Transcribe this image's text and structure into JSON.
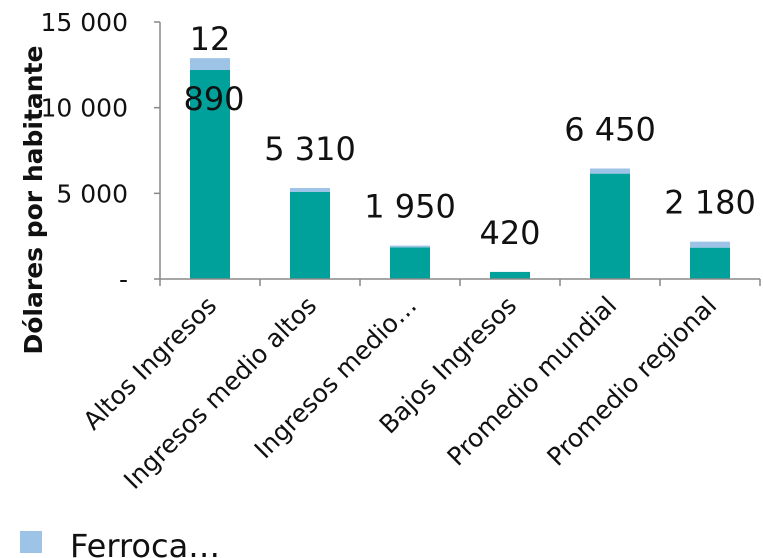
{
  "chart_data": {
    "type": "bar",
    "stacked": true,
    "categories": [
      "Altos Ingresos",
      "Ingresos medio altos",
      "Ingresos medio…",
      "Bajos Ingresos",
      "Promedio mundial",
      "Promedio regional"
    ],
    "series": [
      {
        "name": "",
        "color": "#00a19a",
        "values": [
          12200,
          5080,
          1850,
          410,
          6150,
          1830
        ]
      },
      {
        "name": "Ferroca…",
        "color": "#9dc3e6",
        "values": [
          690,
          230,
          100,
          10,
          300,
          350
        ]
      }
    ],
    "totals_labels": [
      "12 890",
      "5 310",
      "1 950",
      "420",
      "6 450",
      "2 180"
    ],
    "ylabel": "Dólares por habitante",
    "ylim": [
      0,
      15000
    ],
    "yticks": [
      {
        "value": 0,
        "label": "-"
      },
      {
        "value": 5000,
        "label": "5 000"
      },
      {
        "value": 10000,
        "label": "10 000"
      },
      {
        "value": 15000,
        "label": "15 000"
      }
    ],
    "grid": false,
    "legend": "bottom-left"
  }
}
